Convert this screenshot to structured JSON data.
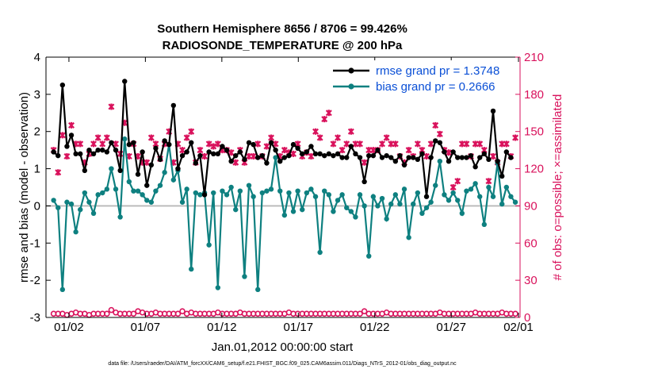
{
  "chart_data": {
    "type": "line",
    "title_line1": "Southern Hemisphere 8656 / 8706 = 99.426%",
    "title_line2": "RADIOSONDE_TEMPERATURE @ 200 hPa",
    "xlabel": "Jan.01,2012 00:00:00 start",
    "ylabel_left": "rmse and bias (model - observation)",
    "ylabel_right": "# of obs: o=possible; ×=assimilated",
    "ylim_left": [
      -3,
      4
    ],
    "ylim_right": [
      0,
      210
    ],
    "xlim_days": [
      0.5,
      31.5
    ],
    "x_ticks": [
      {
        "day": 2,
        "label": "01/02"
      },
      {
        "day": 7,
        "label": "01/07"
      },
      {
        "day": 12,
        "label": "01/12"
      },
      {
        "day": 17,
        "label": "01/17"
      },
      {
        "day": 22,
        "label": "01/22"
      },
      {
        "day": 27,
        "label": "01/27"
      },
      {
        "day": 32,
        "label": "02/01"
      }
    ],
    "y_ticks_left": [
      "-3",
      "-2",
      "-1",
      "0",
      "1",
      "2",
      "3",
      "4"
    ],
    "y_ticks_right": [
      "0",
      "30",
      "60",
      "90",
      "120",
      "150",
      "180",
      "210"
    ],
    "colors": {
      "rmse": "#000000",
      "bias": "#0e8080",
      "obs": "#d9125c",
      "zero": "#b8b8b8",
      "right_axis": "#d9125c"
    },
    "legend": [
      {
        "series": "rmse",
        "label": "rmse grand pr = 1.3748"
      },
      {
        "series": "bias",
        "label": "bias grand pr = 0.2666"
      }
    ],
    "series": [
      {
        "name": "rmse",
        "values": [
          1.45,
          1.35,
          3.25,
          1.6,
          1.9,
          1.4,
          1.4,
          0.95,
          1.5,
          1.4,
          1.5,
          1.5,
          1.45,
          1.7,
          1.5,
          0.95,
          3.35,
          1.65,
          1.7,
          0.85,
          1.45,
          0.55,
          1.1,
          1.55,
          1.25,
          1.75,
          1.65,
          2.7,
          1.0,
          1.35,
          1.45,
          1.7,
          1.15,
          1.35,
          0.3,
          1.45,
          1.4,
          1.4,
          1.6,
          1.5,
          1.2,
          1.35,
          1.45,
          1.25,
          1.7,
          1.65,
          1.3,
          1.35,
          1.15,
          1.7,
          1.5,
          1.2,
          1.3,
          1.35,
          1.65,
          1.55,
          1.4,
          1.45,
          1.6,
          1.4,
          1.4,
          1.35,
          1.4,
          1.35,
          1.4,
          1.3,
          1.3,
          1.6,
          1.4,
          1.3,
          0.65,
          1.35,
          1.35,
          1.5,
          1.3,
          1.35,
          1.3,
          1.2,
          1.35,
          1.1,
          1.3,
          1.3,
          1.25,
          1.4,
          0.25,
          1.3,
          1.75,
          1.7,
          1.45,
          1.2,
          1.45,
          1.3,
          1.3,
          1.3,
          1.35,
          1.05,
          1.3,
          1.4,
          1.25,
          2.55,
          1.2,
          0.8,
          1.45,
          1.3
        ]
      },
      {
        "name": "bias",
        "values": [
          0.15,
          -0.05,
          -2.25,
          0.1,
          0.05,
          -0.7,
          -0.1,
          0.35,
          0.1,
          -0.2,
          0.3,
          0.35,
          0.45,
          1.0,
          0.45,
          -0.3,
          1.8,
          0.65,
          0.4,
          0.4,
          0.3,
          0.15,
          0.1,
          0.4,
          0.55,
          0.9,
          1.65,
          0.7,
          0.95,
          0.1,
          0.45,
          -1.7,
          0.35,
          0.3,
          0.35,
          -1.05,
          0.35,
          -2.2,
          0.4,
          0.3,
          0.5,
          -0.1,
          0.4,
          -1.9,
          0.55,
          0.25,
          -2.25,
          0.35,
          0.4,
          0.45,
          1.3,
          0.4,
          -0.25,
          0.35,
          -0.15,
          0.4,
          -0.1,
          0.35,
          0.45,
          0.25,
          -1.25,
          0.4,
          0.3,
          -0.15,
          0.15,
          0.3,
          -0.05,
          -0.15,
          -0.3,
          0.3,
          0.0,
          -1.35,
          0.25,
          0.0,
          0.2,
          -0.35,
          0.05,
          0.3,
          0.05,
          0.45,
          -0.85,
          0.05,
          0.35,
          -0.2,
          -0.05,
          0.1,
          0.55,
          1.2,
          0.3,
          0.15,
          0.35,
          0.15,
          -0.2,
          0.4,
          0.45,
          0.6,
          0.25,
          -0.5,
          0.5,
          0.25,
          1.15,
          0.05,
          0.5,
          0.25,
          0.1
        ]
      },
      {
        "name": "obs_possible",
        "values": [
          3,
          3,
          3,
          2,
          3,
          4,
          3,
          3,
          2,
          3,
          3,
          3,
          3,
          6,
          4,
          3,
          3,
          3,
          3,
          5,
          4,
          3,
          3,
          4,
          3,
          3,
          3,
          3,
          3,
          5,
          3,
          4,
          3,
          3,
          3,
          3,
          3,
          4,
          3,
          3,
          3,
          3,
          4,
          3,
          3,
          3,
          3,
          3,
          3,
          3,
          3,
          3,
          3,
          4,
          3,
          3,
          3,
          3,
          3,
          3,
          3,
          3,
          3,
          3,
          3,
          3,
          3,
          3,
          3,
          3,
          5,
          3,
          3,
          3,
          3,
          4,
          3,
          3,
          3,
          3,
          3,
          3,
          3,
          3,
          3,
          3,
          3,
          4,
          3,
          3,
          3,
          3,
          3,
          3,
          3,
          4,
          3,
          3,
          3,
          3,
          3,
          4,
          3,
          3,
          3
        ]
      },
      {
        "name": "obs_assimilated",
        "values": [
          135,
          117,
          147,
          130,
          155,
          140,
          140,
          125,
          132,
          140,
          145,
          140,
          145,
          170,
          140,
          132,
          157,
          130,
          140,
          130,
          125,
          125,
          145,
          140,
          128,
          140,
          150,
          125,
          140,
          135,
          145,
          150,
          125,
          135,
          130,
          140,
          138,
          140,
          135,
          135,
          133,
          125,
          135,
          125,
          130,
          130,
          140,
          130,
          138,
          145,
          140,
          130,
          135,
          133,
          132,
          140,
          130,
          133,
          130,
          150,
          145,
          160,
          165,
          140,
          145,
          135,
          140,
          150,
          140,
          140,
          125,
          135,
          135,
          135,
          140,
          145,
          140,
          140,
          130,
          125,
          135,
          130,
          140,
          135,
          130,
          140,
          155,
          148,
          135,
          133,
          105,
          110,
          140,
          140,
          130,
          140,
          140,
          135,
          110,
          130,
          125,
          140,
          140,
          130,
          145
        ]
      }
    ],
    "footnote": "data file: /Users/raeder/DAI/ATM_forcXX/CAM6_setup/f.e21.FHIST_BGC.f09_025.CAM6assim.011/Diags_NTrS_2012-01/obs_diag_output.nc"
  }
}
